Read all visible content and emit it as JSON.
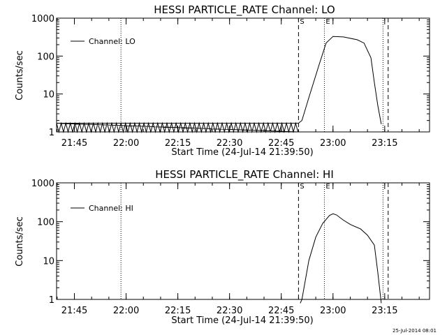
{
  "chart_data": [
    {
      "type": "line",
      "title": "HESSI PARTICLE_RATE Channel: LO",
      "xlabel": "Start Time (24-Jul-14 21:39:50)",
      "ylabel": "Counts/sec",
      "x_tick_labels": [
        "21:45",
        "22:00",
        "22:15",
        "22:30",
        "22:45",
        "23:00",
        "23:15"
      ],
      "y_tick_labels": [
        "1",
        "10",
        "100",
        "1000"
      ],
      "y_scale": "log",
      "ylim": [
        1,
        1000
      ],
      "xlim": [
        "21:39:50",
        "23:28:00"
      ],
      "grid": false,
      "legend_position": "top-left",
      "series": [
        {
          "name": "Channel: LO",
          "x": [
            "21:39:50",
            "22:50:00",
            "22:51:00",
            "22:53:00",
            "22:56:00",
            "22:58:00",
            "23:00:00",
            "23:03:00",
            "23:07:00",
            "23:09:00",
            "23:11:00",
            "23:12:00",
            "23:13:00",
            "23:14:00"
          ],
          "y": [
            1.7,
            1.7,
            2.0,
            8,
            60,
            220,
            330,
            320,
            270,
            220,
            90,
            20,
            5,
            1.6
          ],
          "toggling_segment": {
            "from": "21:39:50",
            "to": "22:50:00",
            "low": 1,
            "high": 1.7
          }
        }
      ],
      "vertical_markers": [
        {
          "label": "",
          "time": "21:58:30",
          "style": "dotted"
        },
        {
          "label": "S",
          "time": "22:50:00",
          "style": "dashed"
        },
        {
          "label": "E",
          "time": "22:57:30",
          "style": "dotted"
        },
        {
          "label": "",
          "time": "23:14:30",
          "style": "dotted"
        },
        {
          "label": "",
          "time": "23:16:00",
          "style": "dashed"
        }
      ]
    },
    {
      "type": "line",
      "title": "HESSI PARTICLE_RATE Channel: HI",
      "xlabel": "Start Time (24-Jul-14 21:39:50)",
      "ylabel": "Counts/sec",
      "x_tick_labels": [
        "21:45",
        "22:00",
        "22:15",
        "22:30",
        "22:45",
        "23:00",
        "23:15"
      ],
      "y_tick_labels": [
        "1",
        "10",
        "100",
        "1000"
      ],
      "y_scale": "log",
      "ylim": [
        1,
        1000
      ],
      "xlim": [
        "21:39:50",
        "23:28:00"
      ],
      "grid": false,
      "legend_position": "top-left",
      "series": [
        {
          "name": "Channel: HI",
          "x": [
            "22:50:30",
            "22:51:00",
            "22:53:00",
            "22:55:00",
            "22:57:00",
            "22:59:00",
            "23:00:00",
            "23:01:00",
            "23:03:00",
            "23:05:00",
            "23:08:00",
            "23:10:00",
            "23:12:00",
            "23:13:00",
            "23:14:00"
          ],
          "y": [
            0.8,
            1.0,
            10,
            40,
            90,
            145,
            160,
            150,
            110,
            85,
            65,
            45,
            25,
            5,
            0.8
          ]
        }
      ],
      "vertical_markers": [
        {
          "label": "",
          "time": "21:58:30",
          "style": "dotted"
        },
        {
          "label": "S",
          "time": "22:50:00",
          "style": "dashed"
        },
        {
          "label": "E",
          "time": "22:57:30",
          "style": "dotted"
        },
        {
          "label": "",
          "time": "23:14:30",
          "style": "dotted"
        },
        {
          "label": "",
          "time": "23:16:00",
          "style": "dashed"
        }
      ]
    }
  ],
  "timestamp": "25-Jul-2014 08:01"
}
